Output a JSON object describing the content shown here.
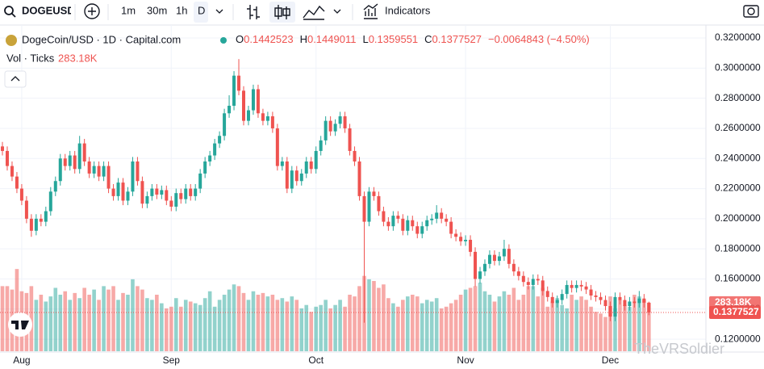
{
  "toolbar": {
    "symbol": "DOGEUSD",
    "intervals": [
      "1m",
      "30m",
      "1h",
      "D"
    ],
    "indicators": "Indicators"
  },
  "watermark": "TheVRSoldier",
  "chart_data": {
    "type": "candlestick",
    "title": "DogeCoin/USD · 1D · Capital.com",
    "ohlc_prefixes": [
      "O",
      "H",
      "L",
      "C"
    ],
    "change_label": "−0.0064843 (−4.50%)",
    "volume_title": "Vol · Ticks",
    "volume_label": "283.18K",
    "up_color": "#26a69a",
    "down_color": "#ef5350",
    "grid": true,
    "categories": [
      null,
      null,
      null,
      null,
      "Aug",
      null,
      null,
      null,
      null,
      null,
      null,
      null,
      null,
      null,
      null,
      null,
      null,
      null,
      null,
      null,
      null,
      null,
      null,
      null,
      null,
      null,
      null,
      null,
      null,
      null,
      null,
      null,
      null,
      null,
      null,
      "Sep",
      null,
      null,
      null,
      null,
      null,
      null,
      null,
      null,
      null,
      null,
      null,
      null,
      null,
      null,
      null,
      null,
      null,
      null,
      null,
      null,
      null,
      null,
      null,
      null,
      null,
      null,
      null,
      null,
      null,
      "Oct",
      null,
      null,
      null,
      null,
      null,
      null,
      null,
      null,
      null,
      null,
      null,
      null,
      null,
      null,
      null,
      null,
      null,
      null,
      null,
      null,
      null,
      null,
      null,
      null,
      null,
      null,
      null,
      null,
      null,
      null,
      "Nov",
      null,
      null,
      null,
      null,
      null,
      null,
      null,
      null,
      null,
      null,
      null,
      null,
      null,
      null,
      null,
      null,
      null,
      null,
      null,
      null,
      null,
      null,
      null,
      null,
      null,
      null,
      null,
      null,
      null,
      "Dec",
      null,
      null,
      null,
      null,
      null,
      null,
      null,
      null
    ],
    "open": [
      0.248,
      0.245,
      0.235,
      0.228,
      0.22,
      0.212,
      0.2,
      0.192,
      0.2,
      0.198,
      0.205,
      0.218,
      0.225,
      0.24,
      0.235,
      0.242,
      0.233,
      0.25,
      0.238,
      0.23,
      0.235,
      0.228,
      0.235,
      0.22,
      0.215,
      0.224,
      0.212,
      0.218,
      0.238,
      0.225,
      0.21,
      0.215,
      0.22,
      0.216,
      0.219,
      0.212,
      0.208,
      0.217,
      0.213,
      0.22,
      0.215,
      0.22,
      0.23,
      0.238,
      0.242,
      0.25,
      0.255,
      0.27,
      0.275,
      0.295,
      0.285,
      0.265,
      0.272,
      0.286,
      0.27,
      0.265,
      0.268,
      0.26,
      0.235,
      0.238,
      0.22,
      0.232,
      0.225,
      0.23,
      0.238,
      0.233,
      0.245,
      0.252,
      0.265,
      0.258,
      0.263,
      0.268,
      0.26,
      0.245,
      0.238,
      0.215,
      0.198,
      0.218,
      0.215,
      0.205,
      0.198,
      0.195,
      0.202,
      0.2,
      0.192,
      0.199,
      0.195,
      0.19,
      0.195,
      0.199,
      0.2,
      0.204,
      0.2,
      0.198,
      0.19,
      0.188,
      0.185,
      0.186,
      0.178,
      0.16,
      0.165,
      0.17,
      0.176,
      0.172,
      0.175,
      0.18,
      0.17,
      0.165,
      0.162,
      0.158,
      0.156,
      0.16,
      0.159,
      0.152,
      0.148,
      0.144,
      0.146,
      0.15,
      0.156,
      0.154,
      0.156,
      0.155,
      0.153,
      0.149,
      0.148,
      0.146,
      0.142,
      0.135,
      0.148,
      0.146,
      0.142,
      0.145,
      0.144,
      0.147,
      0.1442523
    ],
    "high": [
      0.251,
      0.248,
      0.238,
      0.231,
      0.223,
      0.215,
      0.203,
      0.203,
      0.203,
      0.208,
      0.221,
      0.228,
      0.243,
      0.243,
      0.245,
      0.245,
      0.255,
      0.253,
      0.241,
      0.238,
      0.238,
      0.238,
      0.238,
      0.223,
      0.227,
      0.227,
      0.221,
      0.241,
      0.241,
      0.228,
      0.218,
      0.223,
      0.223,
      0.222,
      0.222,
      0.215,
      0.22,
      0.22,
      0.223,
      0.223,
      0.223,
      0.233,
      0.241,
      0.245,
      0.253,
      0.258,
      0.273,
      0.282,
      0.298,
      0.306,
      0.288,
      0.275,
      0.289,
      0.289,
      0.273,
      0.271,
      0.271,
      0.263,
      0.241,
      0.241,
      0.235,
      0.235,
      0.233,
      0.241,
      0.241,
      0.248,
      0.255,
      0.268,
      0.268,
      0.266,
      0.271,
      0.271,
      0.263,
      0.248,
      0.241,
      0.218,
      0.221,
      0.221,
      0.218,
      0.208,
      0.201,
      0.205,
      0.205,
      0.203,
      0.202,
      0.202,
      0.198,
      0.198,
      0.202,
      0.203,
      0.209,
      0.207,
      0.203,
      0.201,
      0.193,
      0.191,
      0.189,
      0.189,
      0.181,
      0.168,
      0.173,
      0.179,
      0.179,
      0.178,
      0.186,
      0.183,
      0.173,
      0.168,
      0.165,
      0.161,
      0.163,
      0.163,
      0.162,
      0.155,
      0.151,
      0.149,
      0.153,
      0.159,
      0.159,
      0.159,
      0.159,
      0.158,
      0.156,
      0.152,
      0.151,
      0.149,
      0.145,
      0.151,
      0.151,
      0.149,
      0.148,
      0.148,
      0.152,
      0.15,
      0.1449011
    ],
    "low": [
      0.242,
      0.232,
      0.225,
      0.217,
      0.209,
      0.197,
      0.188,
      0.189,
      0.195,
      0.195,
      0.202,
      0.215,
      0.222,
      0.232,
      0.232,
      0.23,
      0.23,
      0.235,
      0.227,
      0.227,
      0.225,
      0.225,
      0.217,
      0.212,
      0.212,
      0.209,
      0.209,
      0.215,
      0.222,
      0.207,
      0.207,
      0.212,
      0.213,
      0.213,
      0.209,
      0.205,
      0.205,
      0.21,
      0.21,
      0.212,
      0.212,
      0.217,
      0.227,
      0.235,
      0.239,
      0.247,
      0.252,
      0.267,
      0.272,
      0.282,
      0.262,
      0.262,
      0.269,
      0.267,
      0.262,
      0.262,
      0.257,
      0.232,
      0.232,
      0.217,
      0.217,
      0.222,
      0.222,
      0.227,
      0.23,
      0.23,
      0.242,
      0.249,
      0.255,
      0.255,
      0.26,
      0.257,
      0.242,
      0.235,
      0.212,
      0.131,
      0.195,
      0.212,
      0.202,
      0.195,
      0.192,
      0.192,
      0.197,
      0.189,
      0.189,
      0.192,
      0.187,
      0.187,
      0.192,
      0.196,
      0.197,
      0.197,
      0.195,
      0.187,
      0.185,
      0.182,
      0.182,
      0.175,
      0.155,
      0.157,
      0.162,
      0.167,
      0.169,
      0.169,
      0.172,
      0.167,
      0.162,
      0.159,
      0.155,
      0.153,
      0.153,
      0.156,
      0.149,
      0.145,
      0.141,
      0.141,
      0.143,
      0.147,
      0.151,
      0.151,
      0.152,
      0.15,
      0.146,
      0.145,
      0.143,
      0.139,
      0.132,
      0.132,
      0.143,
      0.139,
      0.139,
      0.141,
      0.141,
      0.141,
      0.1359551
    ],
    "close": [
      0.245,
      0.235,
      0.228,
      0.22,
      0.212,
      0.2,
      0.192,
      0.2,
      0.198,
      0.205,
      0.218,
      0.225,
      0.24,
      0.235,
      0.242,
      0.233,
      0.25,
      0.238,
      0.23,
      0.235,
      0.228,
      0.235,
      0.22,
      0.215,
      0.224,
      0.212,
      0.218,
      0.238,
      0.225,
      0.21,
      0.215,
      0.22,
      0.216,
      0.219,
      0.212,
      0.208,
      0.217,
      0.213,
      0.22,
      0.215,
      0.22,
      0.23,
      0.238,
      0.242,
      0.25,
      0.255,
      0.27,
      0.275,
      0.295,
      0.285,
      0.265,
      0.272,
      0.286,
      0.27,
      0.265,
      0.268,
      0.26,
      0.235,
      0.238,
      0.22,
      0.232,
      0.225,
      0.23,
      0.238,
      0.233,
      0.245,
      0.252,
      0.265,
      0.258,
      0.263,
      0.268,
      0.26,
      0.245,
      0.238,
      0.215,
      0.198,
      0.218,
      0.215,
      0.205,
      0.198,
      0.195,
      0.202,
      0.2,
      0.192,
      0.199,
      0.195,
      0.19,
      0.195,
      0.199,
      0.2,
      0.204,
      0.2,
      0.198,
      0.19,
      0.188,
      0.185,
      0.186,
      0.178,
      0.16,
      0.165,
      0.17,
      0.176,
      0.172,
      0.175,
      0.18,
      0.17,
      0.165,
      0.162,
      0.158,
      0.156,
      0.16,
      0.159,
      0.152,
      0.148,
      0.144,
      0.146,
      0.15,
      0.156,
      0.154,
      0.156,
      0.155,
      0.153,
      0.149,
      0.148,
      0.146,
      0.142,
      0.135,
      0.148,
      0.146,
      0.142,
      0.145,
      0.144,
      0.147,
      0.1442523,
      0.1377527
    ],
    "volume": [
      380000,
      380000,
      360000,
      480000,
      350000,
      340000,
      380000,
      300000,
      330000,
      290000,
      320000,
      370000,
      330000,
      350000,
      300000,
      340000,
      310000,
      370000,
      330000,
      360000,
      300000,
      380000,
      360000,
      380000,
      300000,
      340000,
      330000,
      420000,
      380000,
      360000,
      310000,
      300000,
      330000,
      280000,
      250000,
      260000,
      310000,
      260000,
      300000,
      290000,
      280000,
      270000,
      310000,
      350000,
      260000,
      300000,
      330000,
      360000,
      390000,
      380000,
      340000,
      300000,
      350000,
      330000,
      340000,
      320000,
      330000,
      300000,
      310000,
      290000,
      320000,
      300000,
      250000,
      270000,
      230000,
      260000,
      270000,
      300000,
      250000,
      270000,
      300000,
      260000,
      330000,
      320000,
      380000,
      440000,
      420000,
      410000,
      370000,
      390000,
      310000,
      280000,
      260000,
      300000,
      320000,
      330000,
      320000,
      280000,
      300000,
      290000,
      310000,
      250000,
      260000,
      280000,
      300000,
      330000,
      360000,
      370000,
      380000,
      400000,
      350000,
      330000,
      290000,
      320000,
      350000,
      330000,
      370000,
      300000,
      330000,
      380000,
      380000,
      320000,
      370000,
      260000,
      290000,
      310000,
      270000,
      250000,
      330000,
      300000,
      320000,
      300000,
      260000,
      230000,
      220000,
      200000,
      320000,
      250000,
      300000,
      270000,
      260000,
      330000,
      320000,
      300000,
      283180
    ],
    "ylim": [
      0.112,
      0.327
    ],
    "yticks": [
      {
        "value": 0.12,
        "label": "0.1200000"
      },
      {
        "value": 0.14,
        "label": "0.1400000"
      },
      {
        "value": 0.16,
        "label": "0.1600000"
      },
      {
        "value": 0.18,
        "label": "0.1800000"
      },
      {
        "value": 0.2,
        "label": "0.2000000"
      },
      {
        "value": 0.22,
        "label": "0.2200000"
      },
      {
        "value": 0.24,
        "label": "0.2400000"
      },
      {
        "value": 0.26,
        "label": "0.2600000"
      },
      {
        "value": 0.28,
        "label": "0.2800000"
      },
      {
        "value": 0.3,
        "label": "0.3000000"
      },
      {
        "value": 0.32,
        "label": "0.3200000"
      }
    ],
    "vlim": [
      0,
      1890000
    ]
  }
}
